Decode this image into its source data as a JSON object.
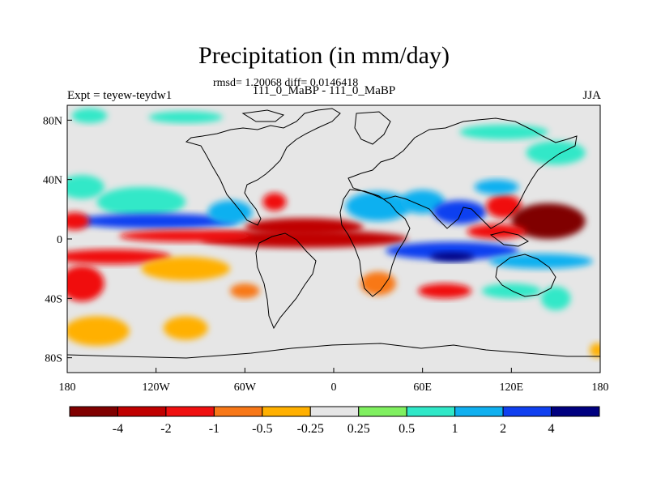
{
  "chart_data": {
    "type": "heatmap",
    "title": "Precipitation (in mm/day)",
    "subtitle": "rmsd= 1.20068 diff= 0.0146418",
    "left_label": "Expt = teyew-teydw1",
    "center_label": "111_0_MaBP - 111_0_MaBP",
    "right_label": "JJA",
    "xlim": [
      -180,
      180
    ],
    "ylim": [
      -90,
      90
    ],
    "x_ticks": [
      {
        "value": -180,
        "label": "180"
      },
      {
        "value": -120,
        "label": "120W"
      },
      {
        "value": -60,
        "label": "60W"
      },
      {
        "value": 0,
        "label": "0"
      },
      {
        "value": 60,
        "label": "60E"
      },
      {
        "value": 120,
        "label": "120E"
      },
      {
        "value": 180,
        "label": "180"
      }
    ],
    "y_ticks": [
      {
        "value": 80,
        "label": "80N"
      },
      {
        "value": 40,
        "label": "40N"
      },
      {
        "value": 0,
        "label": "0"
      },
      {
        "value": -40,
        "label": "40S"
      },
      {
        "value": -80,
        "label": "80S"
      }
    ],
    "colorbar": {
      "colors": [
        "#800000",
        "#c00000",
        "#f01010",
        "#f87818",
        "#ffb000",
        "#e6e6e6",
        "#80f060",
        "#30e8c8",
        "#10b0f0",
        "#1040f0",
        "#000080"
      ],
      "bounds": [
        -4,
        -2,
        -1,
        -0.5,
        -0.25,
        0.25,
        0.5,
        1,
        2,
        4
      ],
      "labels": [
        "-4",
        "-2",
        "-1",
        "-0.5",
        "-0.25",
        "0.25",
        "0.5",
        "1",
        "2",
        "4"
      ]
    },
    "anomalies": [
      {
        "lon": -165,
        "lat": 83,
        "slon": 12,
        "slat": 5,
        "value": 0.7
      },
      {
        "lon": -100,
        "lat": 82,
        "slon": 25,
        "slat": 4,
        "value": 0.6
      },
      {
        "lon": 115,
        "lat": 72,
        "slon": 30,
        "slat": 5,
        "value": 0.6
      },
      {
        "lon": 150,
        "lat": 58,
        "slon": 20,
        "slat": 8,
        "value": 0.5
      },
      {
        "lon": -170,
        "lat": 35,
        "slon": 15,
        "slat": 8,
        "value": 0.6
      },
      {
        "lon": -130,
        "lat": 25,
        "slon": 30,
        "slat": 10,
        "value": 0.7
      },
      {
        "lon": -120,
        "lat": 12,
        "slon": 55,
        "slat": 5,
        "value": 2.8
      },
      {
        "lon": -70,
        "lat": 18,
        "slon": 15,
        "slat": 8,
        "value": 1.8
      },
      {
        "lon": -40,
        "lat": 25,
        "slon": 8,
        "slat": 6,
        "value": -1.2
      },
      {
        "lon": -20,
        "lat": 8,
        "slon": 40,
        "slat": 6,
        "value": -3.0
      },
      {
        "lon": -20,
        "lat": 0,
        "slon": 70,
        "slat": 6,
        "value": -2.6
      },
      {
        "lon": -100,
        "lat": 2,
        "slon": 45,
        "slat": 4,
        "value": -1.3
      },
      {
        "lon": -175,
        "lat": 12,
        "slon": 10,
        "slat": 6,
        "value": -1.8
      },
      {
        "lon": -150,
        "lat": -12,
        "slon": 40,
        "slat": 5,
        "value": -1.6
      },
      {
        "lon": -100,
        "lat": -20,
        "slon": 30,
        "slat": 8,
        "value": -0.5
      },
      {
        "lon": -170,
        "lat": -30,
        "slon": 15,
        "slat": 12,
        "value": -1.4
      },
      {
        "lon": -160,
        "lat": -62,
        "slon": 22,
        "slat": 10,
        "value": -0.3
      },
      {
        "lon": -100,
        "lat": -60,
        "slon": 15,
        "slat": 8,
        "value": -0.4
      },
      {
        "lon": 30,
        "lat": 22,
        "slon": 22,
        "slat": 10,
        "value": 1.2
      },
      {
        "lon": 60,
        "lat": 25,
        "slon": 15,
        "slat": 8,
        "value": 1.8
      },
      {
        "lon": 85,
        "lat": 18,
        "slon": 18,
        "slat": 8,
        "value": 2.3
      },
      {
        "lon": 115,
        "lat": 22,
        "slon": 12,
        "slat": 8,
        "value": -2.0
      },
      {
        "lon": 145,
        "lat": 12,
        "slon": 25,
        "slat": 12,
        "value": -4.5
      },
      {
        "lon": 110,
        "lat": 5,
        "slon": 20,
        "slat": 5,
        "value": -1.5
      },
      {
        "lon": 80,
        "lat": -8,
        "slon": 45,
        "slat": 6,
        "value": 2.8
      },
      {
        "lon": 80,
        "lat": -12,
        "slon": 15,
        "slat": 3,
        "value": 4.5
      },
      {
        "lon": 140,
        "lat": -15,
        "slon": 35,
        "slat": 5,
        "value": 1.2
      },
      {
        "lon": 30,
        "lat": -30,
        "slon": 12,
        "slat": 8,
        "value": -0.6
      },
      {
        "lon": 75,
        "lat": -35,
        "slon": 18,
        "slat": 5,
        "value": -1.5
      },
      {
        "lon": 120,
        "lat": -35,
        "slon": 20,
        "slat": 5,
        "value": 0.8
      },
      {
        "lon": 150,
        "lat": -40,
        "slon": 10,
        "slat": 8,
        "value": 0.6
      },
      {
        "lon": 110,
        "lat": 35,
        "slon": 15,
        "slat": 5,
        "value": 1.6
      },
      {
        "lon": -60,
        "lat": -35,
        "slon": 10,
        "slat": 5,
        "value": -0.6
      },
      {
        "lon": 178,
        "lat": -75,
        "slon": 5,
        "slat": 5,
        "value": -0.5
      }
    ]
  }
}
